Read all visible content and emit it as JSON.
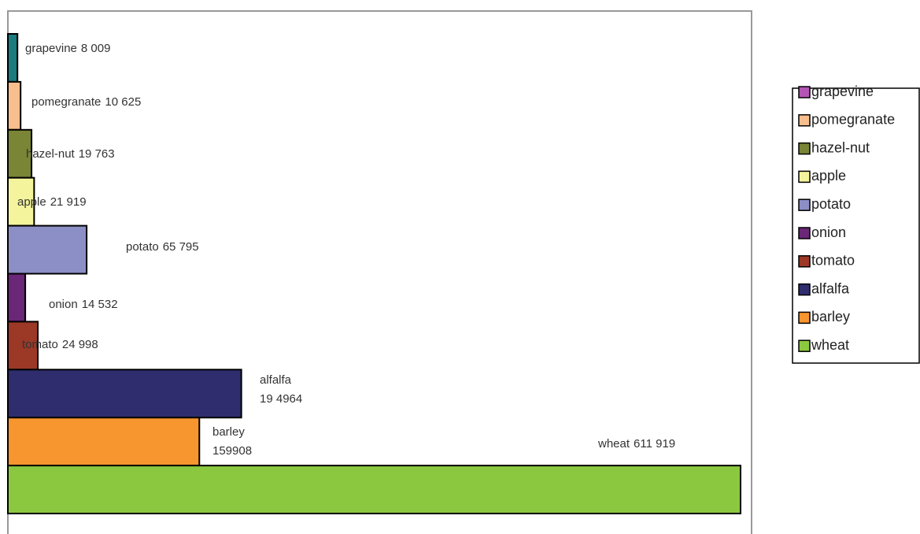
{
  "chart_data": {
    "type": "bar",
    "orientation": "horizontal",
    "categories": [
      "grapevine",
      "pomegranate",
      "hazel-nut",
      "apple",
      "potato",
      "onion",
      "tomato",
      "alfalfa",
      "barley",
      "wheat"
    ],
    "values": [
      8009,
      10625,
      19763,
      21919,
      65795,
      14532,
      24998,
      194964,
      159908,
      611919
    ],
    "value_labels": [
      "8 009",
      "10 625",
      "19 763",
      "21 919",
      "65 795",
      "14 532",
      "24 998",
      "19 4964",
      "159908",
      "611 919"
    ],
    "colors": [
      "#1b7b7e",
      "#f9be8e",
      "#7a8535",
      "#f4f49c",
      "#8c8fc5",
      "#6a2677",
      "#9b3826",
      "#2f2d6e",
      "#f7952f",
      "#8cc83f"
    ],
    "legend_colors": [
      "#b455b4",
      "#f9be8e",
      "#7a8535",
      "#f4f49c",
      "#8c8fc5",
      "#6a2677",
      "#9b3826",
      "#2f2d6e",
      "#f7952f",
      "#8cc83f"
    ]
  }
}
